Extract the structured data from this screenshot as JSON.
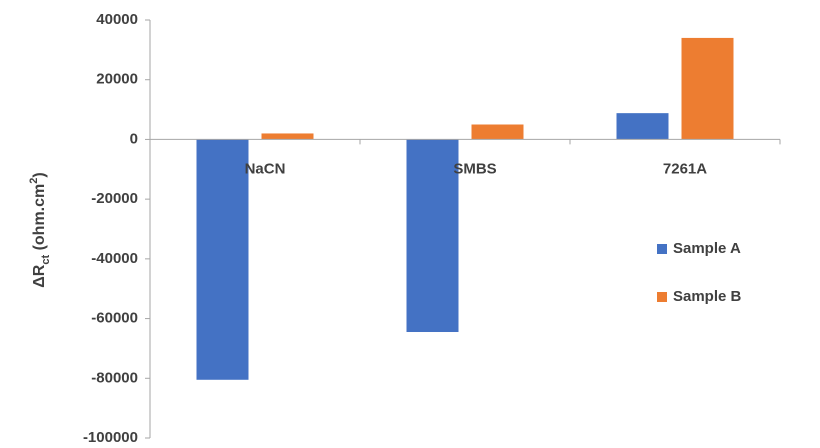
{
  "chart_data": {
    "type": "bar",
    "y_label": [
      "ΔR",
      "ct",
      " (ohm.cm",
      "2",
      ")"
    ],
    "categories": [
      "NaCN",
      "SMBS",
      "7261A"
    ],
    "series": [
      {
        "name": "Sample A",
        "color": "#4472c4",
        "values": [
          -80500,
          -64500,
          8800
        ]
      },
      {
        "name": "Sample B",
        "color": "#ed7d31",
        "values": [
          2000,
          5000,
          34000
        ]
      }
    ],
    "ylim": [
      -100000,
      40000
    ],
    "yticks": [
      -100000,
      -80000,
      -60000,
      -40000,
      -20000,
      0,
      20000,
      40000
    ],
    "grid": false,
    "legend": "right"
  }
}
